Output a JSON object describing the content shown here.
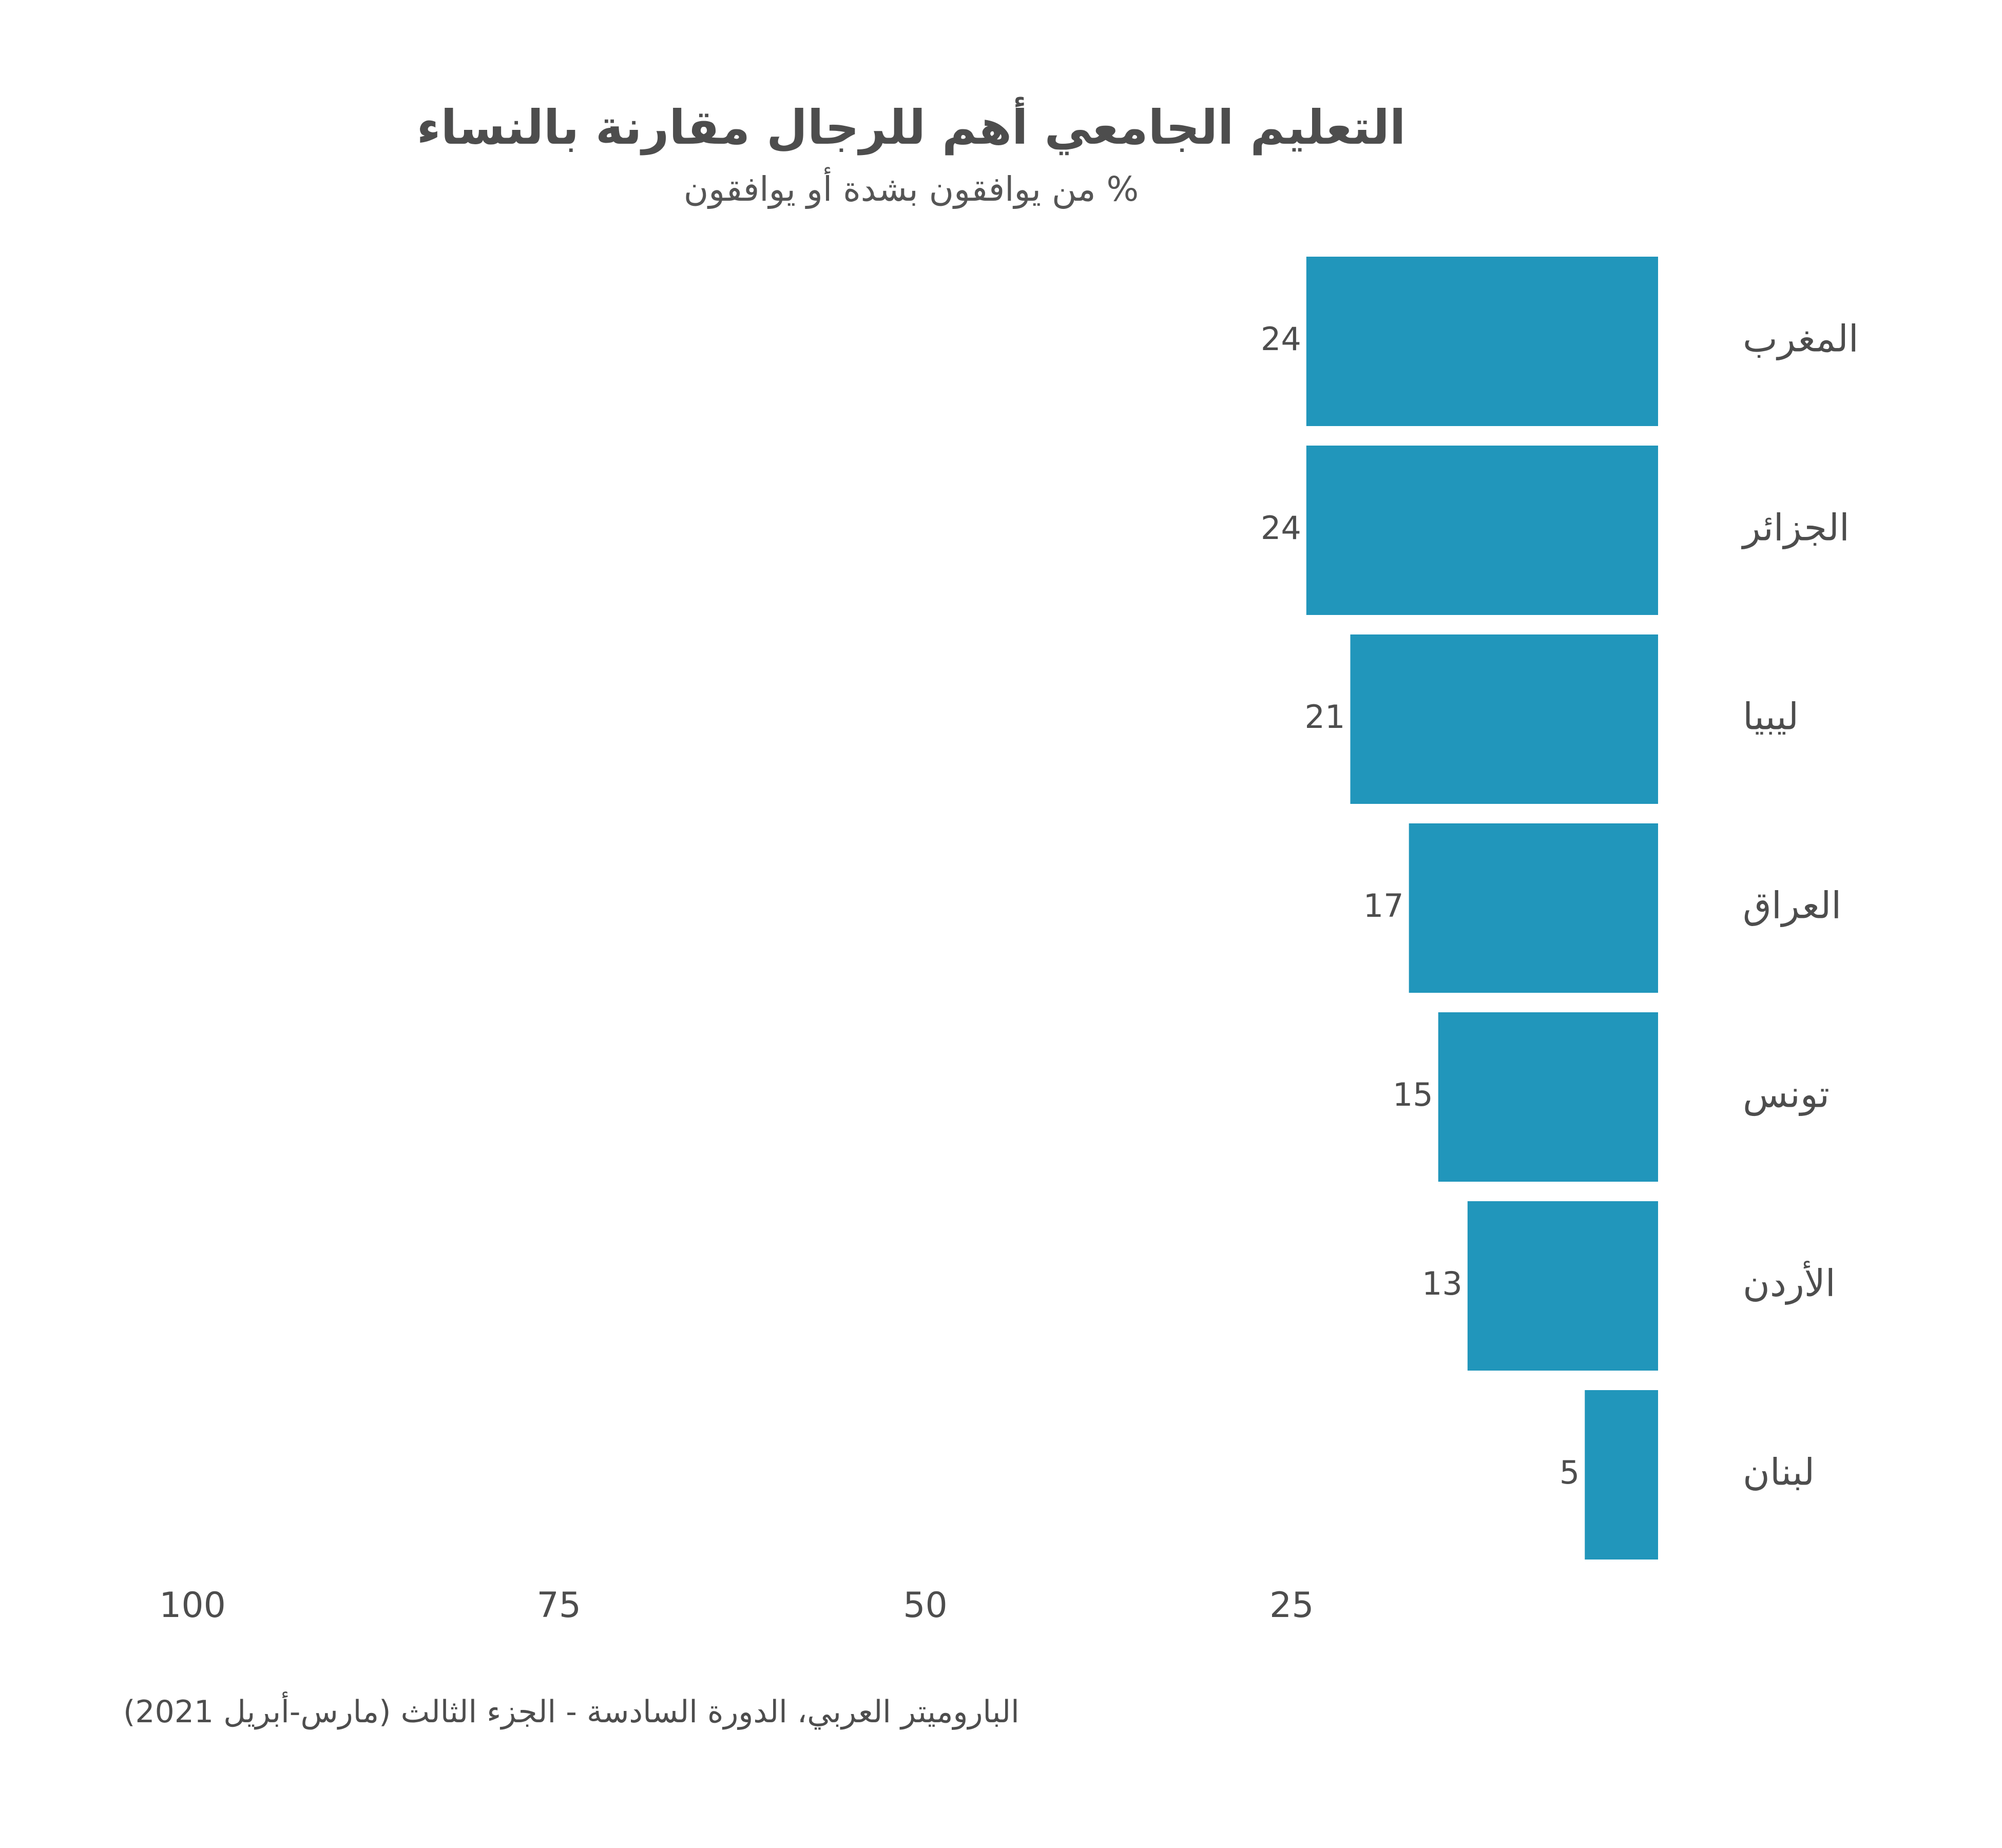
{
  "chart_data": {
    "type": "bar",
    "orientation": "horizontal",
    "direction": "rtl",
    "title": "التعليم الجامعي أهم للرجال مقارنة بالنساء",
    "subtitle": "% من يوافقون بشدة أو يوافقون",
    "categories": [
      "المغرب",
      "الجزائر",
      "ليبيا",
      "العراق",
      "تونس",
      "الأردن",
      "لبنان"
    ],
    "values": [
      24,
      24,
      21,
      17,
      15,
      13,
      5
    ],
    "x_ticks": [
      100,
      75,
      50,
      25
    ],
    "xlim": [
      0,
      100
    ],
    "grid": false,
    "bar_color": "#2196BB",
    "source": "الباروميتر العربي، الدورة السادسة - الجزء الثالث (مارس-أبريل 2021)"
  }
}
